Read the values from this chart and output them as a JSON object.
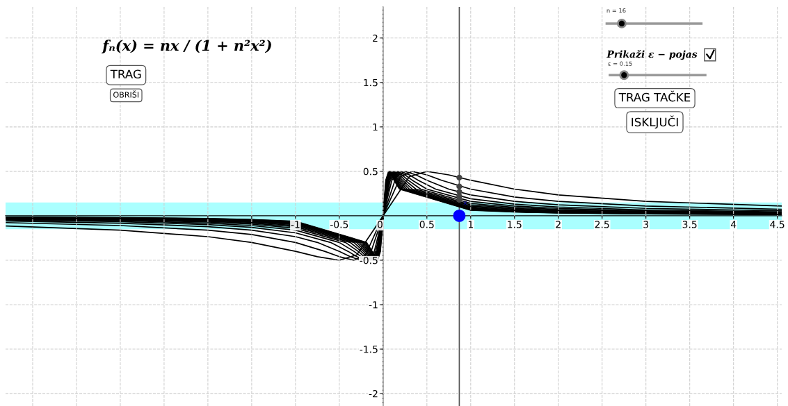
{
  "chart_data": {
    "type": "line",
    "xlim": [
      -4.31,
      4.55
    ],
    "ylim": [
      -2.14,
      2.35
    ],
    "xticks": [
      {
        "value": -4,
        "label": null
      },
      {
        "value": -3.5,
        "label": null
      },
      {
        "value": -3,
        "label": null
      },
      {
        "value": -2.5,
        "label": null
      },
      {
        "value": -2,
        "label": null
      },
      {
        "value": -1.5,
        "label": null
      },
      -1,
      -0.5,
      0,
      0.5,
      1,
      1.5,
      2,
      2.5,
      3,
      3.5,
      4,
      4.5
    ],
    "yticks": [
      -2,
      -1.5,
      -1,
      -0.5,
      0.5,
      1,
      1.5,
      2
    ],
    "grid": true,
    "bands": [
      {
        "axis": "y",
        "from": -0.15,
        "to": 0.15,
        "color": "#aaffff"
      }
    ],
    "ref_lines": [
      {
        "axis": "x",
        "value": 0.87,
        "color": "#555555"
      }
    ],
    "series": [
      {
        "color": "#000000",
        "x": [
          -4.3,
          -3,
          -2,
          -1.5,
          -1,
          -0.75,
          -0.5,
          -0.3,
          0,
          0.3,
          0.5,
          0.75,
          1,
          1.5,
          2,
          3,
          4.55
        ],
        "values": [
          -0.115,
          -0.162,
          -0.235,
          -0.3,
          -0.4,
          -0.46,
          -0.5,
          -0.44,
          0,
          0.44,
          0.5,
          0.46,
          0.4,
          0.3,
          0.235,
          0.162,
          0.11
        ]
      },
      {
        "color": "#000000",
        "x": [
          -4.3,
          -3,
          -2,
          -1.5,
          -1,
          -0.667,
          -0.5,
          -0.333,
          -0.2,
          0,
          0.2,
          0.333,
          0.5,
          0.667,
          1,
          1.5,
          2,
          3,
          4.55
        ],
        "values": [
          -0.077,
          -0.11,
          -0.162,
          -0.211,
          -0.3,
          -0.4,
          -0.46,
          -0.5,
          -0.44,
          0,
          0.44,
          0.5,
          0.46,
          0.4,
          0.3,
          0.211,
          0.162,
          0.11,
          0.073
        ]
      },
      {
        "color": "#000000",
        "x": [
          -4.3,
          -3,
          -2,
          -1.5,
          -1,
          -0.75,
          -0.5,
          -0.375,
          -0.25,
          -0.15,
          0,
          0.15,
          0.25,
          0.375,
          0.5,
          0.75,
          1,
          1.5,
          2,
          3,
          4.55
        ],
        "values": [
          -0.058,
          -0.083,
          -0.123,
          -0.162,
          -0.235,
          -0.3,
          -0.4,
          -0.46,
          -0.5,
          -0.44,
          0,
          0.44,
          0.5,
          0.46,
          0.4,
          0.3,
          0.235,
          0.162,
          0.123,
          0.083,
          0.055
        ]
      },
      {
        "color": "#000000",
        "x": [
          -4.3,
          -3,
          -2,
          -1.5,
          -1,
          -0.6,
          -0.4,
          -0.3,
          -0.2,
          -0.1,
          0,
          0.1,
          0.2,
          0.3,
          0.4,
          0.6,
          1,
          1.5,
          2,
          3,
          4.55
        ],
        "values": [
          -0.046,
          -0.066,
          -0.099,
          -0.131,
          -0.192,
          -0.3,
          -0.4,
          -0.46,
          -0.5,
          -0.4,
          0,
          0.4,
          0.5,
          0.46,
          0.4,
          0.3,
          0.192,
          0.131,
          0.099,
          0.066,
          0.044
        ]
      },
      {
        "color": "#000000",
        "x": [
          -4.3,
          -3,
          -2,
          -1.5,
          -1,
          -0.5,
          -0.333,
          -0.25,
          -0.167,
          -0.083,
          0,
          0.083,
          0.167,
          0.25,
          0.333,
          0.5,
          1,
          1.5,
          2,
          3,
          4.55
        ],
        "values": [
          -0.039,
          -0.055,
          -0.083,
          -0.11,
          -0.162,
          -0.3,
          -0.4,
          -0.46,
          -0.5,
          -0.4,
          0,
          0.4,
          0.5,
          0.46,
          0.4,
          0.3,
          0.162,
          0.11,
          0.083,
          0.055,
          0.037
        ]
      },
      {
        "color": "#000000",
        "x": [
          -4.3,
          -3,
          -2,
          -1.5,
          -1,
          -0.429,
          -0.286,
          -0.214,
          -0.143,
          -0.071,
          0,
          0.071,
          0.143,
          0.214,
          0.286,
          0.429,
          1,
          1.5,
          2,
          3,
          4.55
        ],
        "values": [
          -0.033,
          -0.048,
          -0.071,
          -0.094,
          -0.14,
          -0.3,
          -0.4,
          -0.46,
          -0.5,
          -0.4,
          0,
          0.4,
          0.5,
          0.46,
          0.4,
          0.3,
          0.14,
          0.094,
          0.071,
          0.048,
          0.031
        ]
      },
      {
        "color": "#000000",
        "x": [
          -4.3,
          -3,
          -2,
          -1.5,
          -1,
          -0.375,
          -0.25,
          -0.188,
          -0.125,
          -0.063,
          0,
          0.063,
          0.125,
          0.188,
          0.25,
          0.375,
          1,
          1.5,
          2,
          3,
          4.55
        ],
        "values": [
          -0.029,
          -0.042,
          -0.062,
          -0.083,
          -0.123,
          -0.3,
          -0.4,
          -0.46,
          -0.5,
          -0.4,
          0,
          0.4,
          0.5,
          0.46,
          0.4,
          0.3,
          0.123,
          0.083,
          0.062,
          0.042,
          0.027
        ]
      },
      {
        "color": "#000000",
        "x": [
          -4.3,
          -3,
          -2,
          -1.5,
          -1,
          -0.333,
          -0.222,
          -0.167,
          -0.111,
          -0.056,
          0,
          0.056,
          0.111,
          0.167,
          0.222,
          0.333,
          1,
          1.5,
          2,
          3,
          4.55
        ],
        "values": [
          -0.026,
          -0.037,
          -0.055,
          -0.074,
          -0.11,
          -0.3,
          -0.4,
          -0.46,
          -0.5,
          -0.4,
          0,
          0.4,
          0.5,
          0.46,
          0.4,
          0.3,
          0.11,
          0.074,
          0.055,
          0.037,
          0.024
        ]
      },
      {
        "color": "#000000",
        "x": [
          -4.3,
          -3,
          -2,
          -1.5,
          -1,
          -0.3,
          -0.2,
          -0.15,
          -0.1,
          -0.05,
          0,
          0.05,
          0.1,
          0.15,
          0.2,
          0.3,
          1,
          1.5,
          2,
          3,
          4.55
        ],
        "values": [
          -0.023,
          -0.033,
          -0.05,
          -0.066,
          -0.099,
          -0.3,
          -0.4,
          -0.46,
          -0.5,
          -0.4,
          0,
          0.4,
          0.5,
          0.46,
          0.4,
          0.3,
          0.099,
          0.066,
          0.05,
          0.033,
          0.022
        ]
      },
      {
        "color": "#000000",
        "x": [
          -4.3,
          -3,
          -2,
          -1.5,
          -1,
          -0.273,
          -0.182,
          -0.136,
          -0.091,
          -0.045,
          0,
          0.045,
          0.091,
          0.136,
          0.182,
          0.273,
          1,
          1.5,
          2,
          3,
          4.55
        ],
        "values": [
          -0.021,
          -0.03,
          -0.045,
          -0.06,
          -0.09,
          -0.3,
          -0.4,
          -0.46,
          -0.5,
          -0.4,
          0,
          0.4,
          0.5,
          0.46,
          0.4,
          0.3,
          0.09,
          0.06,
          0.045,
          0.03,
          0.02
        ]
      },
      {
        "color": "#000000",
        "x": [
          -4.3,
          -3,
          -2,
          -1.5,
          -1,
          -0.25,
          -0.167,
          -0.125,
          -0.083,
          -0.042,
          0,
          0.042,
          0.083,
          0.125,
          0.167,
          0.25,
          1,
          1.5,
          2,
          3,
          4.55
        ],
        "values": [
          -0.019,
          -0.028,
          -0.042,
          -0.055,
          -0.083,
          -0.3,
          -0.4,
          -0.46,
          -0.5,
          -0.4,
          0,
          0.4,
          0.5,
          0.46,
          0.4,
          0.3,
          0.083,
          0.055,
          0.042,
          0.028,
          0.018
        ]
      },
      {
        "color": "#000000",
        "x": [
          -4.3,
          -3,
          -2,
          -1.5,
          -1,
          -0.231,
          -0.154,
          -0.115,
          -0.077,
          -0.038,
          0,
          0.038,
          0.077,
          0.115,
          0.154,
          0.231,
          1,
          1.5,
          2,
          3,
          4.55
        ],
        "values": [
          -0.018,
          -0.026,
          -0.038,
          -0.051,
          -0.076,
          -0.3,
          -0.4,
          -0.46,
          -0.5,
          -0.4,
          0,
          0.4,
          0.5,
          0.46,
          0.4,
          0.3,
          0.076,
          0.051,
          0.038,
          0.026,
          0.017
        ]
      },
      {
        "color": "#000000",
        "x": [
          -4.3,
          -3,
          -2,
          -1.5,
          -1,
          -0.214,
          -0.143,
          -0.107,
          -0.071,
          -0.036,
          0,
          0.036,
          0.071,
          0.107,
          0.143,
          0.214,
          1,
          1.5,
          2,
          3,
          4.55
        ],
        "values": [
          -0.017,
          -0.024,
          -0.036,
          -0.047,
          -0.071,
          -0.3,
          -0.4,
          -0.46,
          -0.5,
          -0.4,
          0,
          0.4,
          0.5,
          0.46,
          0.4,
          0.3,
          0.071,
          0.047,
          0.036,
          0.024,
          0.016
        ]
      },
      {
        "color": "#000000",
        "x": [
          -4.3,
          -3,
          -2,
          -1.5,
          -1,
          -0.2,
          -0.133,
          -0.1,
          -0.067,
          -0.033,
          0,
          0.033,
          0.067,
          0.1,
          0.133,
          0.2,
          1,
          1.5,
          2,
          3,
          4.55
        ],
        "values": [
          -0.016,
          -0.022,
          -0.033,
          -0.044,
          -0.066,
          -0.3,
          -0.4,
          -0.46,
          -0.5,
          -0.4,
          0,
          0.4,
          0.5,
          0.46,
          0.4,
          0.3,
          0.066,
          0.044,
          0.033,
          0.022,
          0.015
        ]
      },
      {
        "color": "#000000",
        "x": [
          -4.3,
          -3,
          -2,
          -1.5,
          -1,
          -0.188,
          -0.125,
          -0.094,
          -0.063,
          -0.031,
          0,
          0.031,
          0.063,
          0.094,
          0.125,
          0.188,
          1,
          1.5,
          2,
          3,
          4.55
        ],
        "values": [
          -0.015,
          -0.021,
          -0.031,
          -0.042,
          -0.062,
          -0.3,
          -0.4,
          -0.46,
          -0.5,
          -0.4,
          0,
          0.4,
          0.5,
          0.46,
          0.4,
          0.3,
          0.062,
          0.042,
          0.031,
          0.021,
          0.014
        ]
      },
      {
        "type": "scatter",
        "marker": "circle",
        "color": "#444444",
        "x": [
          0.87,
          0.87,
          0.87,
          0.87,
          0.87
        ],
        "values": [
          0.43,
          0.33,
          0.27,
          0.22,
          0.18
        ]
      },
      {
        "type": "scatter",
        "marker": "circle",
        "color": "#0000ff",
        "x": [
          0.87
        ],
        "values": [
          0
        ]
      }
    ],
    "annotations": [
      "fₙ(x) = nx / (1 + n²x²)",
      "TRAG",
      "OBRIŠI",
      "n = 16",
      "Prikaži ε − pojas",
      "ε = 0.15",
      "TRAG TAČKE",
      "ISKLJUČI",
      {
        "text": "x",
        "x": 0.87,
        "y": 0.1
      }
    ]
  }
}
